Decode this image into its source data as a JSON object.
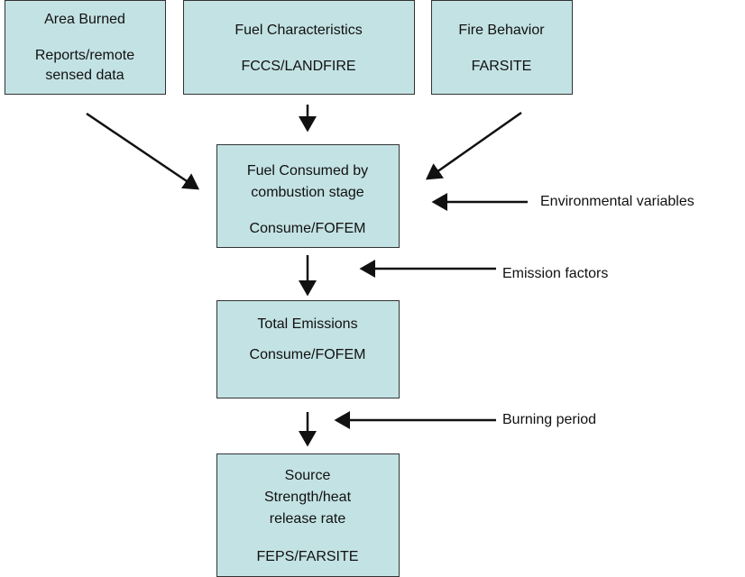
{
  "nodes": [
    {
      "lines": [
        "Area Burned",
        "Reports/remote",
        "sensed data"
      ]
    },
    {
      "lines": [
        "Fuel Characteristics",
        "FCCS/LANDFIRE"
      ]
    },
    {
      "lines": [
        "Fire Behavior",
        "FARSITE"
      ]
    },
    {
      "lines": [
        "Fuel Consumed by",
        "combustion stage",
        "Consume/FOFEM"
      ]
    },
    {
      "lines": [
        "Total Emissions",
        "Consume/FOFEM"
      ]
    },
    {
      "lines": [
        "Source",
        "Strength/heat",
        "release rate",
        "FEPS/FARSITE"
      ]
    }
  ],
  "inputs": [
    {
      "label": "Environmental variables"
    },
    {
      "label": "Emission factors"
    },
    {
      "label": "Burning period"
    }
  ]
}
